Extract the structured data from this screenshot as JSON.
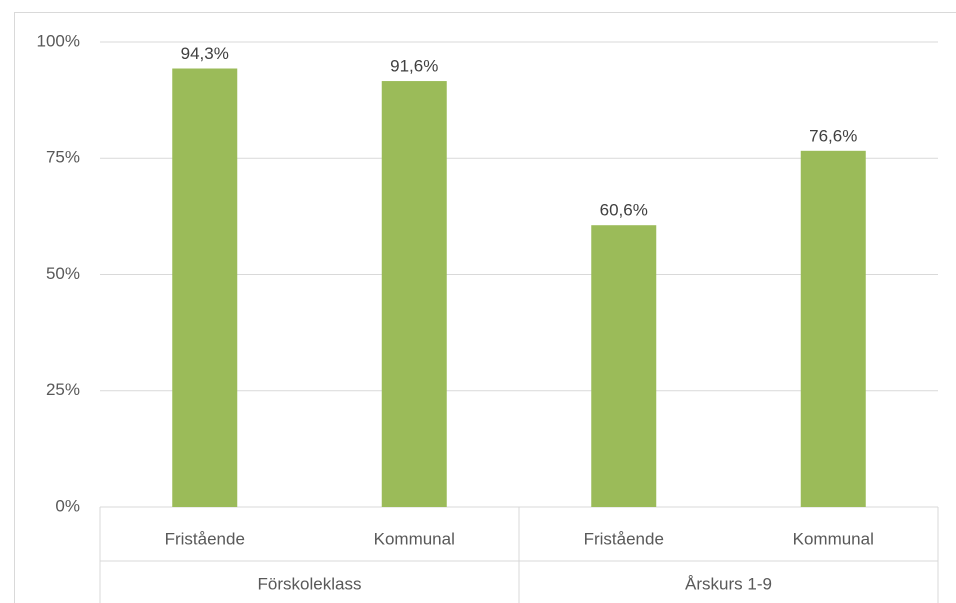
{
  "chart_data": {
    "type": "bar",
    "categories": [
      "Fristående",
      "Kommunal",
      "Fristående",
      "Kommunal"
    ],
    "groups": [
      "Förskoleklass",
      "Årskurs 1-9"
    ],
    "values": [
      94.3,
      91.6,
      60.6,
      76.6
    ],
    "value_labels": [
      "94,3%",
      "91,6%",
      "60,6%",
      "76,6%"
    ],
    "color": "#9bbb59",
    "ylim": [
      0,
      100
    ],
    "yticks": [
      {
        "value": 0,
        "label": "0%"
      },
      {
        "value": 25,
        "label": "25%"
      },
      {
        "value": 50,
        "label": "50%"
      },
      {
        "value": 75,
        "label": "75%"
      },
      {
        "value": 100,
        "label": "100%"
      }
    ],
    "grid": true
  }
}
